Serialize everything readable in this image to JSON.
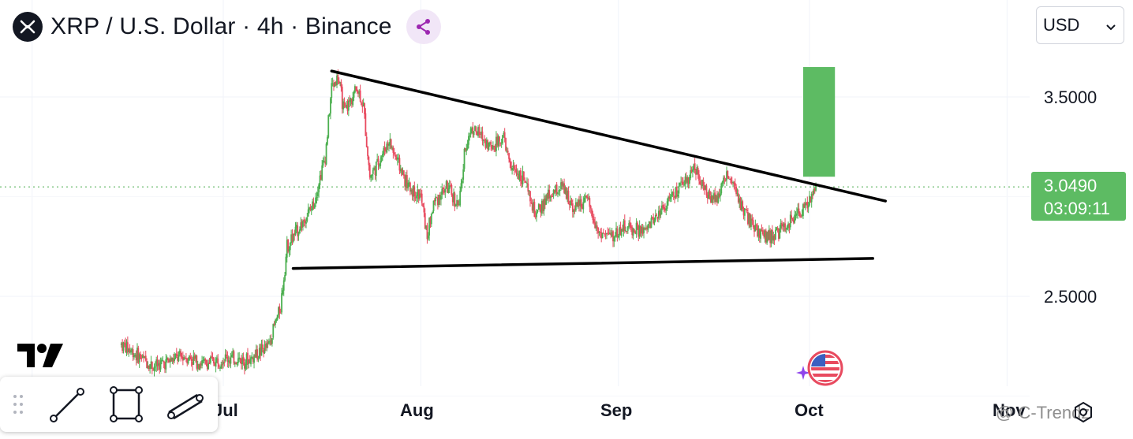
{
  "header": {
    "title": "XRP / U.S. Dollar · 4h · Binance",
    "currency": "USD"
  },
  "price_tag": {
    "price": "3.0490",
    "countdown": "03:09:11",
    "color": "#5dbb63"
  },
  "watermark": "@ C-Trendz",
  "colors": {
    "up": "#4caf50",
    "down": "#e84a5f",
    "target_box": "#5dbb63",
    "trendline": "#000000"
  },
  "icons": [
    "xrp-logo-icon",
    "share-icon",
    "chevron-down-icon",
    "drag-handle-icon",
    "line-tool-icon",
    "rectangle-tool-icon",
    "parallel-channel-icon",
    "settings-icon",
    "us-flag-icon",
    "sparkle-icon"
  ],
  "chart_data": {
    "type": "candlestick",
    "timeframe": "4h",
    "y_ticks": [
      "3.5000",
      "2.5000"
    ],
    "x_ticks": [
      "Jul",
      "Aug",
      "Sep",
      "Oct",
      "Nov"
    ],
    "ylim": [
      2.0,
      3.95
    ],
    "last_price": 3.049,
    "close_path": [
      [
        "2025-06-15",
        2.26
      ],
      [
        "2025-06-20",
        2.15
      ],
      [
        "2025-06-25",
        2.2
      ],
      [
        "2025-06-28",
        2.16
      ],
      [
        "2025-07-01",
        2.19
      ],
      [
        "2025-07-05",
        2.18
      ],
      [
        "2025-07-08",
        2.25
      ],
      [
        "2025-07-10",
        2.45
      ],
      [
        "2025-07-11",
        2.75
      ],
      [
        "2025-07-13",
        2.85
      ],
      [
        "2025-07-15",
        2.95
      ],
      [
        "2025-07-17",
        3.2
      ],
      [
        "2025-07-18",
        3.55
      ],
      [
        "2025-07-19",
        3.6
      ],
      [
        "2025-07-20",
        3.42
      ],
      [
        "2025-07-22",
        3.55
      ],
      [
        "2025-07-23",
        3.45
      ],
      [
        "2025-07-24",
        3.1
      ],
      [
        "2025-07-25",
        3.15
      ],
      [
        "2025-07-27",
        3.28
      ],
      [
        "2025-07-28",
        3.2
      ],
      [
        "2025-07-30",
        3.05
      ],
      [
        "2025-08-01",
        3.0
      ],
      [
        "2025-08-02",
        2.8
      ],
      [
        "2025-08-03",
        2.97
      ],
      [
        "2025-08-05",
        3.05
      ],
      [
        "2025-08-07",
        2.95
      ],
      [
        "2025-08-08",
        3.25
      ],
      [
        "2025-08-09",
        3.35
      ],
      [
        "2025-08-12",
        3.25
      ],
      [
        "2025-08-14",
        3.3
      ],
      [
        "2025-08-15",
        3.15
      ],
      [
        "2025-08-17",
        3.1
      ],
      [
        "2025-08-19",
        2.9
      ],
      [
        "2025-08-21",
        3.0
      ],
      [
        "2025-08-23",
        3.05
      ],
      [
        "2025-08-25",
        2.95
      ],
      [
        "2025-08-27",
        2.98
      ],
      [
        "2025-08-29",
        2.82
      ],
      [
        "2025-08-31",
        2.8
      ],
      [
        "2025-09-02",
        2.85
      ],
      [
        "2025-09-05",
        2.82
      ],
      [
        "2025-09-08",
        2.95
      ],
      [
        "2025-09-11",
        3.05
      ],
      [
        "2025-09-13",
        3.15
      ],
      [
        "2025-09-15",
        3.0
      ],
      [
        "2025-09-17",
        3.02
      ],
      [
        "2025-09-18",
        3.12
      ],
      [
        "2025-09-20",
        2.98
      ],
      [
        "2025-09-22",
        2.85
      ],
      [
        "2025-09-23",
        2.82
      ],
      [
        "2025-09-25",
        2.8
      ],
      [
        "2025-09-27",
        2.84
      ],
      [
        "2025-09-29",
        2.9
      ],
      [
        "2025-10-01",
        2.98
      ],
      [
        "2025-10-02",
        3.05
      ]
    ],
    "drawings": {
      "upper_trendline": [
        [
          "2025-07-18",
          3.63
        ],
        [
          "2025-10-04",
          2.97
        ]
      ],
      "lower_trendline": [
        [
          "2025-07-08",
          2.64
        ],
        [
          "2025-10-04",
          2.69
        ]
      ],
      "target_box": {
        "from": "2025-10-01",
        "to": "2025-10-04",
        "low": 3.1,
        "high": 3.65
      }
    }
  }
}
